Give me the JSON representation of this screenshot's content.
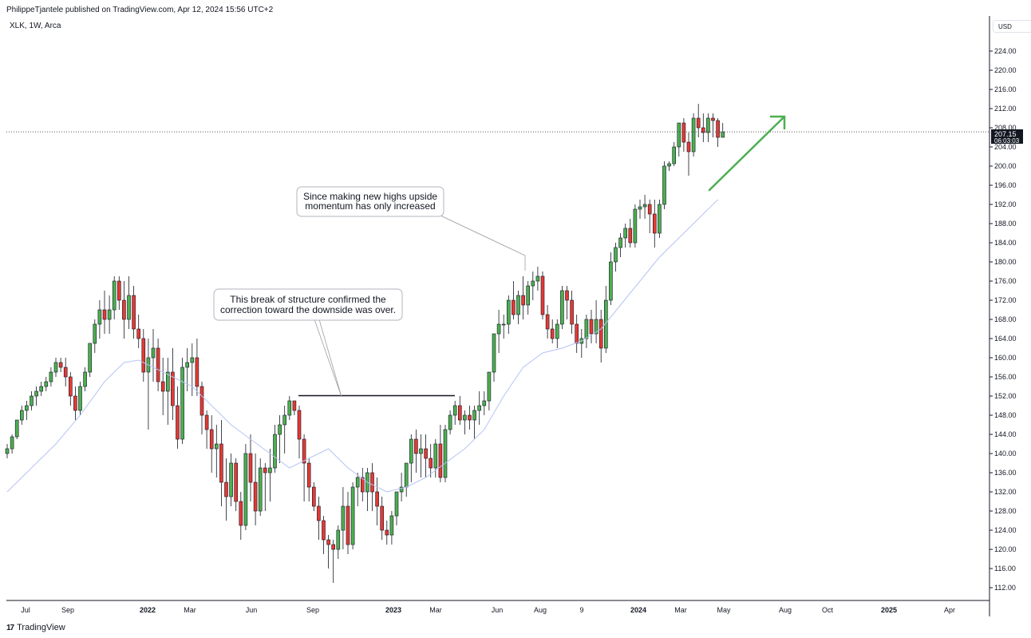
{
  "header": {
    "publisher_line": "PhilippeTjantele published on TradingView.com, Apr 12, 2024 15:56 UTC+2",
    "symbol_line": "XLK, 1W, Arca"
  },
  "currency_button": "USD",
  "footer": {
    "brand": "TradingView"
  },
  "price_tag": {
    "price": "207.15",
    "countdown": "06:03:03"
  },
  "colors": {
    "up": "#4caf50",
    "down": "#e53935",
    "ma": "#b7c3f5",
    "arrow": "#4caf50"
  },
  "chart_data": {
    "type": "candlestick",
    "ylim": [
      110,
      228
    ],
    "y_ticks": [
      112,
      116,
      120,
      124,
      128,
      132,
      136,
      140,
      144,
      148,
      152,
      156,
      160,
      164,
      168,
      172,
      176,
      180,
      184,
      188,
      192,
      196,
      200,
      204,
      208,
      212,
      216,
      220,
      224
    ],
    "x_ticks": [
      {
        "label": "Jul",
        "bold": false
      },
      {
        "label": "Sep",
        "bold": false
      },
      {
        "label": "2022",
        "bold": true
      },
      {
        "label": "Mar",
        "bold": false
      },
      {
        "label": "Jun",
        "bold": false
      },
      {
        "label": "Sep",
        "bold": false
      },
      {
        "label": "2023",
        "bold": true
      },
      {
        "label": "Mar",
        "bold": false
      },
      {
        "label": "Jun",
        "bold": false
      },
      {
        "label": "Aug",
        "bold": false
      },
      {
        "label": "9",
        "bold": false
      },
      {
        "label": "2024",
        "bold": true
      },
      {
        "label": "Mar",
        "bold": false
      },
      {
        "label": "May",
        "bold": false
      },
      {
        "label": "Aug",
        "bold": false
      },
      {
        "label": "Oct",
        "bold": false
      },
      {
        "label": "2025",
        "bold": true
      },
      {
        "label": "Apr",
        "bold": false
      }
    ],
    "candles": [
      [
        140,
        142,
        139,
        141
      ],
      [
        141,
        144,
        140,
        143.5
      ],
      [
        143.5,
        147,
        143,
        147
      ],
      [
        147,
        150,
        146,
        149
      ],
      [
        149,
        151,
        147,
        150
      ],
      [
        150,
        153,
        149,
        152
      ],
      [
        152,
        154,
        150,
        153
      ],
      [
        153,
        155,
        152,
        154
      ],
      [
        154,
        156,
        153,
        155
      ],
      [
        155,
        158,
        154,
        157
      ],
      [
        157,
        160,
        156,
        159
      ],
      [
        159,
        160,
        157,
        158
      ],
      [
        158,
        160,
        154,
        156
      ],
      [
        156,
        157,
        150,
        152
      ],
      [
        152,
        154,
        147,
        149
      ],
      [
        149,
        155,
        148,
        154
      ],
      [
        154,
        158,
        153,
        157
      ],
      [
        157,
        163,
        156,
        163
      ],
      [
        163,
        168,
        161,
        167
      ],
      [
        167,
        172,
        164,
        170
      ],
      [
        170,
        174,
        165,
        168
      ],
      [
        168,
        173,
        165,
        170
      ],
      [
        170,
        177,
        168,
        176
      ],
      [
        176,
        177,
        170,
        172
      ],
      [
        172,
        176,
        164,
        168
      ],
      [
        168,
        177,
        166,
        173
      ],
      [
        173,
        175,
        164,
        166
      ],
      [
        166,
        169,
        162,
        164
      ],
      [
        164,
        166,
        155,
        157
      ],
      [
        157,
        164,
        145,
        160
      ],
      [
        160,
        166,
        155,
        162
      ],
      [
        162,
        164,
        153,
        155
      ],
      [
        155,
        160,
        148,
        153
      ],
      [
        153,
        160,
        146,
        157
      ],
      [
        157,
        162,
        147,
        150
      ],
      [
        150,
        154,
        141,
        143
      ],
      [
        143,
        160,
        142,
        158
      ],
      [
        158,
        162,
        153,
        159
      ],
      [
        159,
        163,
        152,
        160
      ],
      [
        160,
        164,
        152,
        154
      ],
      [
        154,
        155,
        144,
        148
      ],
      [
        148,
        149,
        141,
        145
      ],
      [
        145,
        148,
        136,
        141
      ],
      [
        141,
        146,
        135,
        142
      ],
      [
        142,
        147,
        129,
        134
      ],
      [
        134,
        139,
        126,
        131
      ],
      [
        131,
        140,
        129,
        138
      ],
      [
        138,
        139,
        128,
        130
      ],
      [
        130,
        132,
        122,
        125
      ],
      [
        125,
        142,
        124,
        140
      ],
      [
        140,
        144,
        130,
        134
      ],
      [
        134,
        140,
        125,
        128
      ],
      [
        128,
        139,
        127,
        137
      ],
      [
        137,
        138,
        128,
        136
      ],
      [
        136,
        141,
        130,
        137
      ],
      [
        137,
        146,
        136,
        144
      ],
      [
        144,
        148,
        138,
        146
      ],
      [
        146,
        150,
        140,
        148
      ],
      [
        148,
        152,
        147,
        151
      ],
      [
        151,
        151,
        148,
        149
      ],
      [
        149,
        150,
        139,
        143
      ],
      [
        143,
        144,
        130,
        138
      ],
      [
        138,
        139,
        130,
        133
      ],
      [
        133,
        134,
        128,
        129
      ],
      [
        129,
        131,
        122,
        126
      ],
      [
        126,
        127,
        119,
        122
      ],
      [
        122,
        123,
        116,
        121
      ],
      [
        121,
        122,
        113,
        120
      ],
      [
        120,
        125,
        118,
        124
      ],
      [
        124,
        133,
        120,
        129
      ],
      [
        129,
        132,
        119,
        121
      ],
      [
        121,
        134,
        120,
        133
      ],
      [
        133,
        136,
        129,
        135
      ],
      [
        135,
        137,
        130,
        132
      ],
      [
        132,
        137,
        128,
        136
      ],
      [
        136,
        138,
        128,
        132
      ],
      [
        132,
        135,
        125,
        129
      ],
      [
        129,
        131,
        122,
        124
      ],
      [
        124,
        126,
        121,
        123
      ],
      [
        123,
        128,
        121,
        127
      ],
      [
        127,
        131,
        125,
        132
      ],
      [
        132,
        136,
        130,
        133
      ],
      [
        133,
        138,
        131,
        138
      ],
      [
        138,
        144,
        134,
        143
      ],
      [
        143,
        145,
        136,
        140
      ],
      [
        140,
        144,
        135,
        141
      ],
      [
        141,
        144,
        135,
        139
      ],
      [
        139,
        142,
        135,
        137
      ],
      [
        137,
        143,
        135,
        142
      ],
      [
        142,
        146,
        134,
        135
      ],
      [
        135,
        146,
        134,
        145
      ],
      [
        145,
        149,
        144,
        148
      ],
      [
        148,
        151,
        146,
        150
      ],
      [
        150,
        152,
        146,
        147
      ],
      [
        147,
        149,
        144,
        148
      ],
      [
        148,
        150,
        145,
        147
      ],
      [
        147,
        150,
        143,
        149
      ],
      [
        149,
        153,
        146,
        150
      ],
      [
        150,
        153,
        148,
        151
      ],
      [
        151,
        156,
        149,
        157
      ],
      [
        157,
        164,
        155,
        165
      ],
      [
        165,
        170,
        161,
        167
      ],
      [
        167,
        169,
        164,
        167
      ],
      [
        167,
        173,
        165,
        172
      ],
      [
        172,
        176,
        168,
        169
      ],
      [
        169,
        174,
        167,
        173
      ],
      [
        173,
        177,
        168,
        171
      ],
      [
        171,
        176,
        169,
        175
      ],
      [
        175,
        178,
        172,
        176
      ],
      [
        176,
        179,
        174,
        177
      ],
      [
        177,
        178,
        168,
        169
      ],
      [
        169,
        171,
        164,
        166
      ],
      [
        166,
        168,
        163,
        164
      ],
      [
        164,
        168,
        162,
        167
      ],
      [
        167,
        175,
        166,
        174
      ],
      [
        174,
        175,
        168,
        172
      ],
      [
        172,
        174,
        165,
        167
      ],
      [
        167,
        169,
        161,
        163
      ],
      [
        163,
        166,
        160,
        164
      ],
      [
        164,
        169,
        162,
        168
      ],
      [
        168,
        170,
        163,
        165
      ],
      [
        165,
        172,
        163,
        168
      ],
      [
        168,
        170,
        159,
        162
      ],
      [
        162,
        175,
        161,
        172
      ],
      [
        172,
        182,
        171,
        180
      ],
      [
        180,
        184,
        178,
        183
      ],
      [
        183,
        186,
        181,
        185
      ],
      [
        185,
        188,
        183,
        187
      ],
      [
        187,
        189,
        183,
        184
      ],
      [
        184,
        192,
        183,
        191
      ],
      [
        191,
        193,
        189,
        191.5
      ],
      [
        191.5,
        194,
        189,
        192
      ],
      [
        192,
        193,
        186,
        190
      ],
      [
        190,
        193,
        183,
        186
      ],
      [
        186,
        193,
        185,
        192
      ],
      [
        192,
        201,
        191,
        200
      ],
      [
        200,
        201,
        199,
        200.5
      ],
      [
        200.5,
        205,
        200,
        204
      ],
      [
        204,
        209,
        202,
        209
      ],
      [
        209,
        210,
        203,
        205
      ],
      [
        205,
        207,
        198,
        203
      ],
      [
        203,
        211,
        202,
        210
      ],
      [
        210,
        213,
        206,
        208
      ],
      [
        208,
        211,
        205,
        207
      ],
      [
        207,
        211,
        205,
        210
      ],
      [
        210,
        211,
        206,
        209.5
      ],
      [
        209.5,
        210,
        204,
        206
      ],
      [
        206,
        209,
        206,
        207.15
      ]
    ],
    "moving_average": [
      [
        0,
        132
      ],
      [
        5,
        137
      ],
      [
        10,
        142
      ],
      [
        15,
        148
      ],
      [
        20,
        155
      ],
      [
        24,
        159
      ],
      [
        27,
        159.5
      ],
      [
        32,
        157
      ],
      [
        38,
        154
      ],
      [
        42,
        150
      ],
      [
        46,
        146
      ],
      [
        50,
        143
      ],
      [
        54,
        140
      ],
      [
        58,
        137
      ],
      [
        62,
        139
      ],
      [
        66,
        141
      ],
      [
        70,
        137
      ],
      [
        74,
        134
      ],
      [
        78,
        132
      ],
      [
        82,
        133
      ],
      [
        86,
        135
      ],
      [
        90,
        138
      ],
      [
        94,
        141
      ],
      [
        98,
        145
      ],
      [
        102,
        152
      ],
      [
        106,
        158
      ],
      [
        110,
        161
      ],
      [
        114,
        162
      ],
      [
        118,
        163.5
      ],
      [
        122,
        166
      ],
      [
        126,
        171
      ],
      [
        130,
        176
      ],
      [
        134,
        181
      ],
      [
        138,
        185
      ],
      [
        142,
        189
      ],
      [
        146,
        193
      ]
    ],
    "break_of_structure_level": 152,
    "current_price": 207.15,
    "annotations": [
      {
        "text_lines": [
          "This break of structure confirmed the",
          "correction toward the downside was over."
        ]
      },
      {
        "text_lines": [
          "Since making new highs upside",
          "momentum has only increased"
        ]
      }
    ]
  }
}
